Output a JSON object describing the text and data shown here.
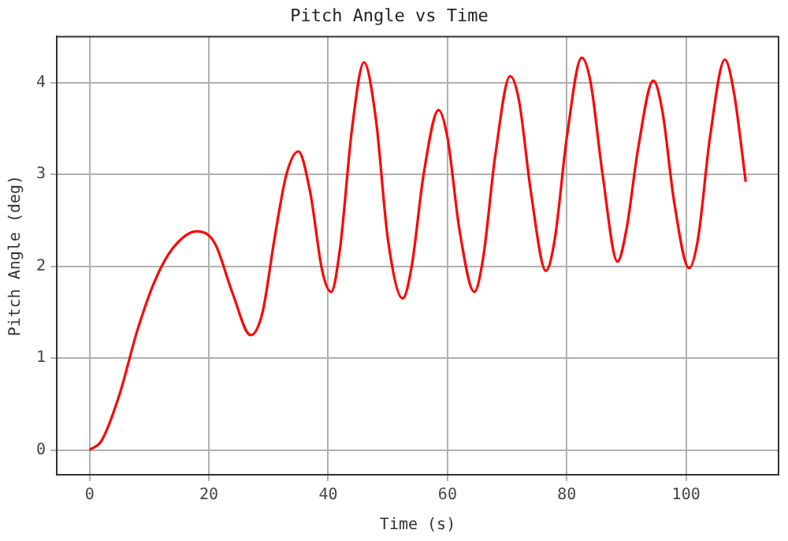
{
  "chart_data": {
    "type": "line",
    "title": "Pitch Angle vs Time",
    "xlabel": "Time (s)",
    "ylabel": "Pitch Angle (deg)",
    "x": [
      0,
      2,
      5,
      8,
      11,
      14,
      18,
      21,
      24,
      27,
      29,
      31,
      33,
      35,
      37,
      39,
      40.5,
      42,
      44,
      46,
      48,
      50,
      52.5,
      54,
      56,
      58.5,
      60,
      62,
      64.5,
      66,
      68,
      70.5,
      72,
      74,
      76.5,
      78,
      80,
      82.5,
      84,
      86,
      88.5,
      90,
      92,
      94.5,
      96,
      98,
      100.5,
      102,
      104,
      106.5,
      108,
      110
    ],
    "series": [
      {
        "color": "#ff0000",
        "values": [
          0,
          0.1,
          0.6,
          1.3,
          1.85,
          2.2,
          2.38,
          2.25,
          1.7,
          1.25,
          1.5,
          2.3,
          3.0,
          3.25,
          2.8,
          1.95,
          1.72,
          2.2,
          3.5,
          4.22,
          3.6,
          2.3,
          1.65,
          2.0,
          3.0,
          3.7,
          3.4,
          2.4,
          1.72,
          2.1,
          3.2,
          4.07,
          3.8,
          2.8,
          1.95,
          2.3,
          3.4,
          4.27,
          4.0,
          3.0,
          2.05,
          2.4,
          3.3,
          4.02,
          3.7,
          2.7,
          1.98,
          2.3,
          3.4,
          4.25,
          3.9,
          2.92
        ]
      }
    ],
    "xlim": [
      -5.5,
      115.5
    ],
    "ylim": [
      -0.27,
      4.5
    ],
    "xticks": [
      0,
      20,
      40,
      60,
      80,
      100
    ],
    "yticks": [
      0,
      1,
      2,
      3,
      4
    ],
    "grid": true,
    "legend": false,
    "marker": "none",
    "line_style": "solid"
  }
}
